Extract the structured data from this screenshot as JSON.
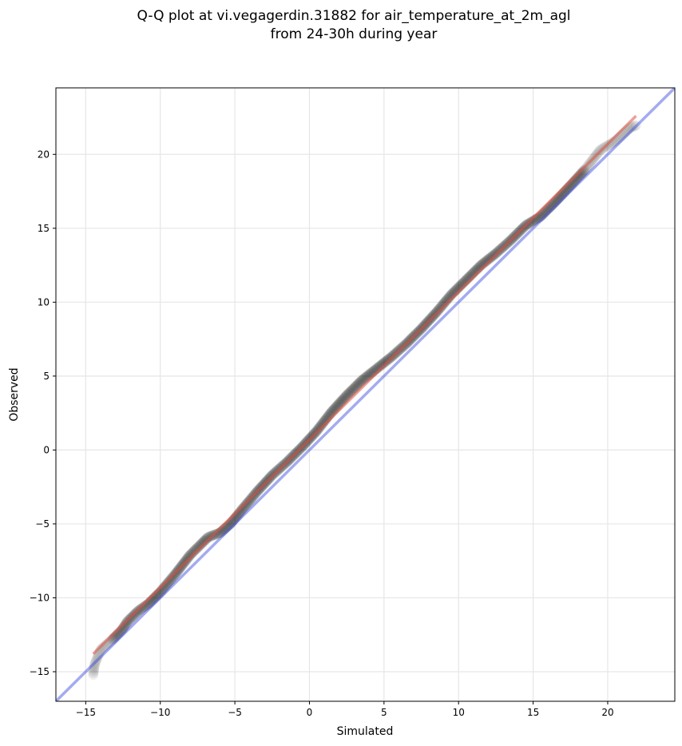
{
  "chart_data": {
    "type": "scatter",
    "title_lines": [
      "Q-Q plot at vi.vegagerdin.31882 for air_temperature_at_2m_agl",
      "from 24-30h during year"
    ],
    "xlabel": "Simulated",
    "ylabel": "Observed",
    "xlim": [
      -17,
      24.5
    ],
    "ylim": [
      -17,
      24.5
    ],
    "xticks": [
      -15,
      -10,
      -5,
      0,
      5,
      10,
      15,
      20
    ],
    "yticks": [
      -15,
      -10,
      -5,
      0,
      5,
      10,
      15,
      20
    ],
    "xtick_labels": [
      "−15",
      "−10",
      "−5",
      "0",
      "5",
      "10",
      "15",
      "20"
    ],
    "ytick_labels": [
      "−15",
      "−10",
      "−5",
      "0",
      "5",
      "10",
      "15",
      "20"
    ],
    "grid": true,
    "colors": {
      "points": "#000000",
      "identity_line": "#3344dd",
      "fit_line": "#e05040",
      "grid": "#e6e6e6"
    },
    "identity_line": {
      "x": [
        -17,
        24.5
      ],
      "y": [
        -17,
        24.5
      ]
    },
    "fit_line": {
      "x": [
        -14.5,
        21.9
      ],
      "y": [
        -13.8,
        22.6
      ]
    },
    "quantile_curve": {
      "x": [
        -14.5,
        -14.4,
        -14.0,
        -13.2,
        -12.6,
        -12.2,
        -11.5,
        -10.8,
        -10.0,
        -9.0,
        -8.0,
        -7.3,
        -6.8,
        -6.0,
        -5.3,
        -4.5,
        -3.5,
        -2.5,
        -1.5,
        -0.5,
        0.5,
        1.5,
        2.5,
        3.5,
        4.5,
        5.5,
        6.5,
        7.5,
        8.5,
        9.5,
        10.5,
        11.5,
        12.5,
        13.5,
        14.5,
        15.5,
        16.5,
        17.5,
        18.5,
        19.5,
        20.5,
        21.5,
        22.0
      ],
      "y": [
        -15.2,
        -14.5,
        -13.5,
        -12.8,
        -12.2,
        -11.6,
        -10.9,
        -10.4,
        -9.6,
        -8.4,
        -7.1,
        -6.4,
        -5.9,
        -5.6,
        -5.0,
        -4.0,
        -2.8,
        -1.7,
        -0.8,
        0.2,
        1.3,
        2.6,
        3.7,
        4.7,
        5.5,
        6.3,
        7.2,
        8.2,
        9.3,
        10.5,
        11.5,
        12.5,
        13.3,
        14.2,
        15.2,
        15.8,
        16.8,
        17.9,
        19.0,
        20.3,
        20.9,
        21.8,
        22.0
      ]
    }
  }
}
